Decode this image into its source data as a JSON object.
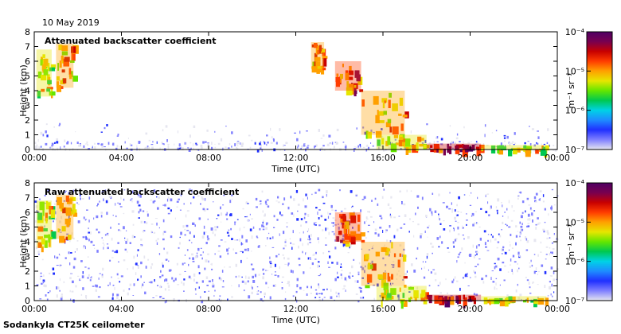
{
  "header": {
    "date": "10 May 2019"
  },
  "footer": {
    "instrument": "Sodankyla CT25K ceilometer"
  },
  "colorbar": {
    "unit_label": "m⁻¹ sr⁻¹",
    "ticks": [
      "10⁻⁴",
      "10⁻⁵",
      "10⁻⁶",
      "10⁻⁷"
    ],
    "colors": [
      "#e6e6f0",
      "#8080ff",
      "#2030ff",
      "#1e8cff",
      "#00d2e6",
      "#00c850",
      "#64e600",
      "#e6e600",
      "#ffa000",
      "#ff3c00",
      "#c80000",
      "#780050",
      "#500064"
    ]
  },
  "chart_data": [
    {
      "type": "heatmap",
      "title": "Attenuated backscatter coefficient",
      "xlabel": "Time (UTC)",
      "ylabel": "Height (km)",
      "x_ticks": [
        "00:00",
        "04:00",
        "08:00",
        "12:00",
        "16:00",
        "20:00",
        "00:00"
      ],
      "xlim": [
        0,
        24
      ],
      "y_ticks": [
        "0",
        "1",
        "2",
        "3",
        "4",
        "5",
        "6",
        "7",
        "8"
      ],
      "ylim": [
        0,
        8
      ],
      "color_scale": "log",
      "clim": [
        1e-07,
        0.0001
      ],
      "cloud_layers": [
        {
          "time": [
            0.1,
            0.8
          ],
          "height": [
            3.6,
            6.8
          ],
          "level": 0.6
        },
        {
          "time": [
            1.0,
            1.8
          ],
          "height": [
            4.2,
            7.2
          ],
          "level": 0.65
        },
        {
          "time": [
            12.7,
            13.3
          ],
          "height": [
            5.5,
            7.3
          ],
          "level": 0.7
        },
        {
          "time": [
            13.8,
            15.0
          ],
          "height": [
            4.0,
            6.0
          ],
          "level": 0.75
        },
        {
          "time": [
            15.0,
            17.0
          ],
          "height": [
            1.0,
            4.0
          ],
          "level": 0.65
        },
        {
          "time": [
            15.7,
            18.0
          ],
          "height": [
            0.0,
            1.0
          ],
          "level": 0.6
        },
        {
          "time": [
            18.0,
            20.5
          ],
          "height": [
            0.0,
            0.4
          ],
          "level": 0.85
        },
        {
          "time": [
            20.5,
            23.5
          ],
          "height": [
            0.0,
            0.3
          ],
          "level": 0.55
        }
      ]
    },
    {
      "type": "heatmap",
      "title": "Raw attenuated backscatter coefficient",
      "xlabel": "Time (UTC)",
      "ylabel": "Height (km)",
      "x_ticks": [
        "00:00",
        "04:00",
        "08:00",
        "12:00",
        "16:00",
        "20:00",
        "00:00"
      ],
      "xlim": [
        0,
        24
      ],
      "y_ticks": [
        "0",
        "1",
        "2",
        "3",
        "4",
        "5",
        "6",
        "7",
        "8"
      ],
      "ylim": [
        0,
        8
      ],
      "color_scale": "log",
      "clim": [
        1e-07,
        0.0001
      ],
      "cloud_layers": [
        {
          "time": [
            0.1,
            0.8
          ],
          "height": [
            3.6,
            6.8
          ],
          "level": 0.6
        },
        {
          "time": [
            1.0,
            1.8
          ],
          "height": [
            4.2,
            7.2
          ],
          "level": 0.65
        },
        {
          "time": [
            13.8,
            15.0
          ],
          "height": [
            4.0,
            6.0
          ],
          "level": 0.75
        },
        {
          "time": [
            15.0,
            17.0
          ],
          "height": [
            1.0,
            4.0
          ],
          "level": 0.65
        },
        {
          "time": [
            15.7,
            18.0
          ],
          "height": [
            0.0,
            1.0
          ],
          "level": 0.6
        },
        {
          "time": [
            18.0,
            20.5
          ],
          "height": [
            0.0,
            0.4
          ],
          "level": 0.85
        },
        {
          "time": [
            20.5,
            23.5
          ],
          "height": [
            0.0,
            0.3
          ],
          "level": 0.55
        }
      ]
    }
  ]
}
